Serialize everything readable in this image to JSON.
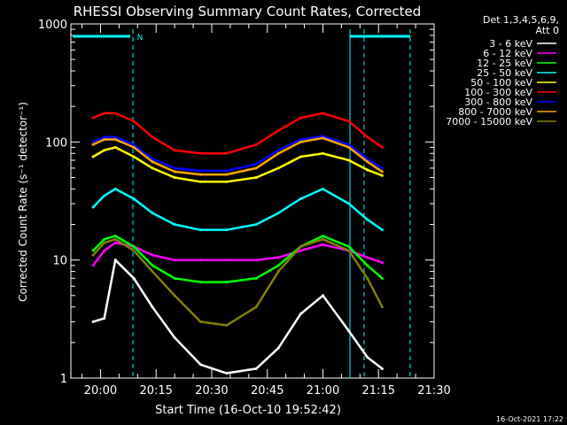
{
  "chart_data": {
    "type": "line",
    "title": "RHESSI Observing Summary Count Rates, Corrected",
    "xlabel": "Start Time (16-Oct-10 19:52:42)",
    "ylabel": "Corrected Count Rate (s⁻¹ detector⁻¹)",
    "yscale": "log",
    "ylim": [
      1,
      1000
    ],
    "xlim_minutes_from_1952": [
      0,
      98
    ],
    "x_tick_labels": [
      "20:00",
      "20:15",
      "20:30",
      "20:45",
      "21:00",
      "21:15",
      "21:30"
    ],
    "x_tick_minutes": [
      8,
      23,
      38,
      53,
      68,
      83,
      98
    ],
    "y_tick_labels": [
      "1",
      "10",
      "100",
      "1000"
    ],
    "y_tick_values": [
      1,
      10,
      100,
      1000
    ],
    "legend_header": [
      "Det 1,3,4,5,6,9,",
      "Att 0"
    ],
    "legend_position": "top-right",
    "footer_timestamp": "16-Oct-2021 17:22",
    "night_marker_label": "N",
    "x": [
      6,
      9,
      12,
      17,
      22,
      28,
      35,
      42,
      50,
      56,
      62,
      68,
      75,
      80,
      84
    ],
    "series": [
      {
        "name": "3 - 6 keV",
        "color": "#ffffff",
        "values": [
          3,
          3.2,
          10,
          7,
          4,
          2.2,
          1.3,
          1.1,
          1.2,
          1.8,
          3.5,
          5,
          2.5,
          1.5,
          1.2
        ]
      },
      {
        "name": "6 - 12 keV",
        "color": "#ff00ff",
        "values": [
          9,
          12,
          14,
          13,
          11,
          10,
          10,
          10,
          10,
          10.5,
          12,
          13.5,
          12,
          10.5,
          9.5
        ]
      },
      {
        "name": "12 - 25 keV",
        "color": "#00ff00",
        "values": [
          12,
          15,
          16,
          13,
          9,
          7,
          6.5,
          6.5,
          7,
          9,
          13,
          16,
          13,
          9,
          7
        ]
      },
      {
        "name": "25 - 50 keV",
        "color": "#00ffff",
        "values": [
          28,
          35,
          40,
          33,
          25,
          20,
          18,
          18,
          20,
          25,
          33,
          40,
          30,
          22,
          18
        ]
      },
      {
        "name": "50 - 100 keV",
        "color": "#ffff00",
        "values": [
          75,
          85,
          90,
          75,
          60,
          50,
          46,
          46,
          50,
          60,
          75,
          80,
          70,
          58,
          52
        ]
      },
      {
        "name": "100 - 300 keV",
        "color": "#ff0000",
        "values": [
          160,
          175,
          175,
          150,
          110,
          85,
          80,
          80,
          95,
          125,
          160,
          175,
          150,
          110,
          90
        ]
      },
      {
        "name": "300 - 800 keV",
        "color": "#0000ff",
        "values": [
          100,
          110,
          110,
          95,
          72,
          60,
          57,
          57,
          65,
          85,
          105,
          112,
          95,
          72,
          60
        ]
      },
      {
        "name": "800 - 7000 keV",
        "color": "#ffa500",
        "values": [
          95,
          105,
          105,
          90,
          68,
          56,
          53,
          53,
          60,
          80,
          100,
          108,
          90,
          68,
          56
        ]
      },
      {
        "name": "7000 - 15000 keV",
        "color": "#808000",
        "values": [
          11,
          14,
          15,
          12,
          8,
          5,
          3,
          2.8,
          4,
          8,
          13,
          15,
          12,
          7,
          4
        ]
      }
    ]
  }
}
